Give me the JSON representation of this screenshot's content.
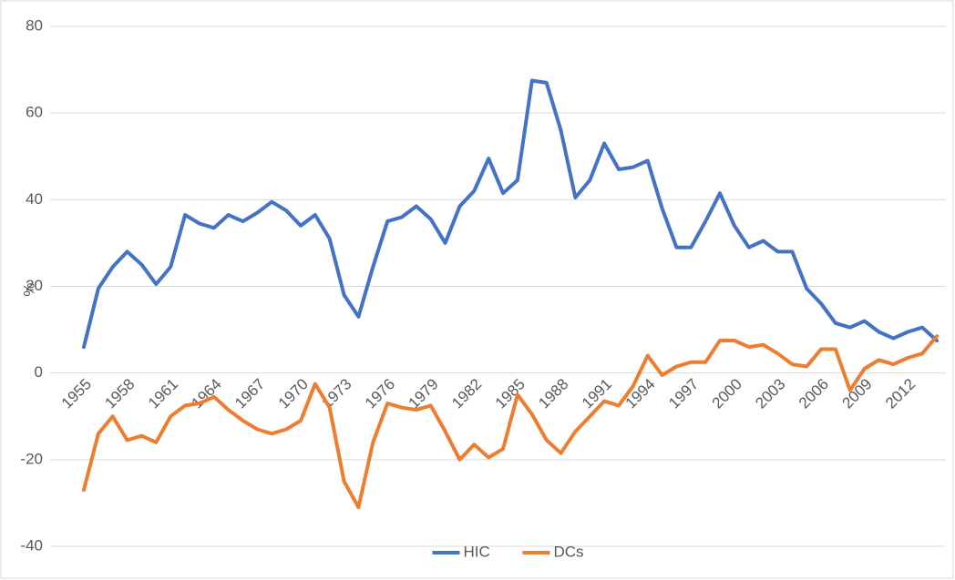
{
  "chart_data": {
    "type": "line",
    "y_label": "%",
    "categories": [
      "1955",
      null,
      null,
      "1958",
      null,
      null,
      "1961",
      null,
      null,
      "1964",
      null,
      null,
      "1967",
      null,
      null,
      "1970",
      null,
      null,
      "1973",
      null,
      null,
      "1976",
      null,
      null,
      "1979",
      null,
      null,
      "1982",
      null,
      null,
      "1985",
      null,
      null,
      "1988",
      null,
      null,
      "1991",
      null,
      null,
      "1994",
      null,
      null,
      "1997",
      null,
      null,
      "2000",
      null,
      null,
      "2003",
      null,
      null,
      "2006",
      null,
      null,
      "2009",
      null,
      null,
      "2012",
      null,
      null
    ],
    "series": [
      {
        "name": "HIC",
        "color": "#4472c4",
        "values": [
          6,
          19.5,
          24.5,
          28,
          25,
          20.5,
          24.5,
          36.5,
          34.5,
          33.5,
          36.5,
          35,
          37,
          39.5,
          37.5,
          34,
          36.5,
          31,
          18,
          13,
          24.5,
          35,
          36,
          38.5,
          35.5,
          30,
          38.5,
          42,
          49.5,
          41.5,
          44.5,
          67.5,
          67,
          56,
          40.5,
          44.5,
          53,
          47,
          47.5,
          49,
          38,
          29,
          29,
          35,
          41.5,
          34,
          29,
          30.5,
          28,
          28,
          19.5,
          16,
          11.5,
          10.5,
          12,
          9.5,
          8,
          9.5,
          10.5,
          7.5
        ]
      },
      {
        "name": "DCs",
        "color": "#ed7d31",
        "values": [
          -27,
          -14,
          -10,
          -15.5,
          -14.5,
          -16,
          -10,
          -7.5,
          -7,
          -5.5,
          -8.5,
          -11,
          -13,
          -14,
          -13,
          -11,
          -2.5,
          -8,
          -25,
          -31,
          -16,
          -7,
          -8,
          -8.5,
          -7.5,
          -13.5,
          -20,
          -16.5,
          -19.5,
          -17.5,
          -5,
          -9.5,
          -15.5,
          -18.5,
          -13.5,
          -10,
          -6.5,
          -7.5,
          -3,
          4,
          -0.5,
          1.5,
          2.5,
          2.5,
          7.5,
          7.5,
          6,
          6.5,
          4.5,
          2,
          1.5,
          5.5,
          5.5,
          -4,
          1,
          3,
          2,
          3.5,
          4.5,
          8.5
        ]
      }
    ],
    "ylim": [
      -40,
      80
    ],
    "yticks": [
      -40,
      -20,
      0,
      20,
      40,
      60,
      80
    ],
    "grid": true,
    "legend": "bottom"
  }
}
